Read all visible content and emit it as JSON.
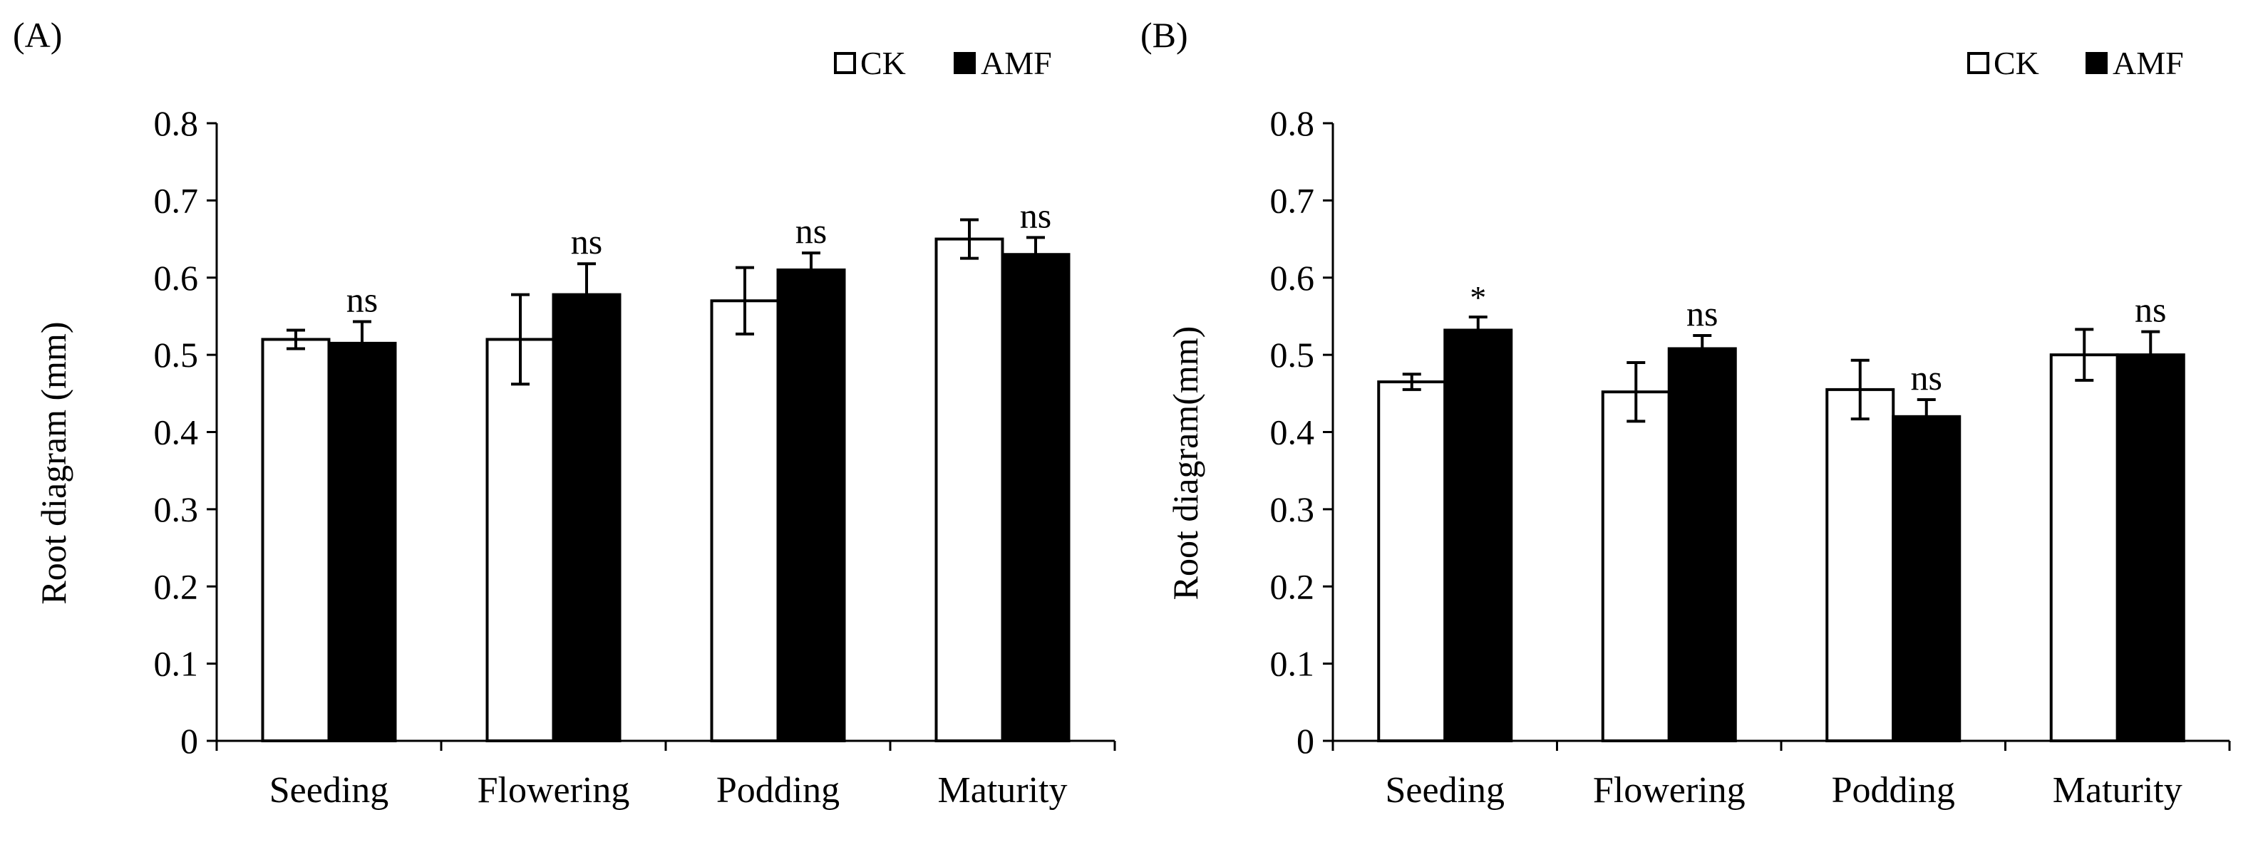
{
  "chart_data": [
    {
      "type": "bar",
      "panel_label": "(A)",
      "ylabel": "Root diagram (mm)",
      "ylim": [
        0,
        0.8
      ],
      "yticks": [
        "0",
        "0.1",
        "0.2",
        "0.3",
        "0.4",
        "0.5",
        "0.6",
        "0.7",
        "0.8"
      ],
      "categories": [
        "Seeding",
        "Flowering",
        "Podding",
        "Maturity"
      ],
      "legend_position": "top-right",
      "series": [
        {
          "name": "CK",
          "color": "#ffffff",
          "values": [
            0.52,
            0.52,
            0.57,
            0.65
          ],
          "errors": [
            0.012,
            0.058,
            0.043,
            0.025
          ]
        },
        {
          "name": "AMF",
          "color": "#000000",
          "values": [
            0.515,
            0.578,
            0.61,
            0.63
          ],
          "errors": [
            0.028,
            0.04,
            0.022,
            0.022
          ]
        }
      ],
      "annotations": [
        "ns",
        "ns",
        "ns",
        "ns"
      ]
    },
    {
      "type": "bar",
      "panel_label": "(B)",
      "ylabel": "Root diagram(mm)",
      "ylim": [
        0,
        0.8
      ],
      "yticks": [
        "0",
        "0.1",
        "0.2",
        "0.3",
        "0.4",
        "0.5",
        "0.6",
        "0.7",
        "0.8"
      ],
      "categories": [
        "Seeding",
        "Flowering",
        "Podding",
        "Maturity"
      ],
      "legend_position": "top-right",
      "series": [
        {
          "name": "CK",
          "color": "#ffffff",
          "values": [
            0.465,
            0.452,
            0.455,
            0.5
          ],
          "errors": [
            0.01,
            0.038,
            0.038,
            0.033
          ]
        },
        {
          "name": "AMF",
          "color": "#000000",
          "values": [
            0.532,
            0.508,
            0.42,
            0.5
          ],
          "errors": [
            0.017,
            0.017,
            0.022,
            0.03
          ]
        }
      ],
      "annotations": [
        "*",
        "ns",
        "ns",
        "ns"
      ]
    }
  ]
}
